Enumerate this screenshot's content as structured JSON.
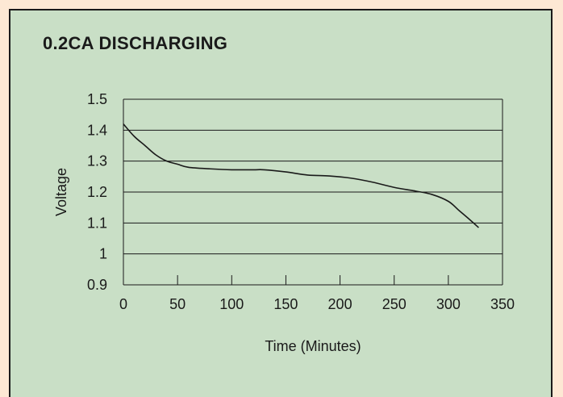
{
  "colors": {
    "panel": "#c9dfc6",
    "border": "#1a1a1a",
    "line": "#1a1a1a"
  },
  "chart_data": {
    "type": "line",
    "title": "0.2CA DISCHARGING",
    "xlabel": "Time (Minutes)",
    "ylabel": "Voltage",
    "xlim": [
      0,
      350
    ],
    "ylim": [
      0.9,
      1.5
    ],
    "x_ticks": [
      0,
      50,
      100,
      150,
      200,
      250,
      300,
      350
    ],
    "x_tick_labels": [
      "0",
      "50",
      "100",
      "150",
      "200",
      "250",
      "300",
      "350"
    ],
    "y_ticks": [
      0.9,
      1.0,
      1.1,
      1.2,
      1.3,
      1.4,
      1.5
    ],
    "y_tick_labels": [
      "0.9",
      "1",
      "1.1",
      "1.2",
      "1.3",
      "1.4",
      "1.5"
    ],
    "grid": "horizontal",
    "series": [
      {
        "values_x": [
          0,
          10,
          20,
          30,
          40,
          50,
          60,
          80,
          100,
          120,
          130,
          150,
          170,
          190,
          210,
          230,
          250,
          270,
          285,
          300,
          310,
          320,
          328
        ],
        "values_y": [
          1.42,
          1.38,
          1.35,
          1.32,
          1.3,
          1.29,
          1.28,
          1.275,
          1.272,
          1.272,
          1.272,
          1.265,
          1.255,
          1.252,
          1.245,
          1.232,
          1.215,
          1.203,
          1.192,
          1.17,
          1.14,
          1.11,
          1.085
        ]
      }
    ]
  }
}
